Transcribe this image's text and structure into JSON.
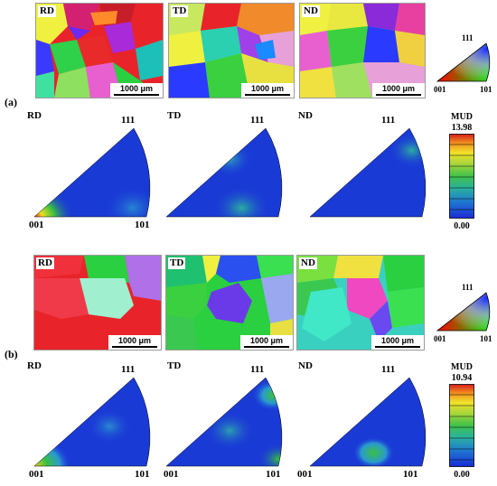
{
  "panels": [
    {
      "label": "(a)",
      "maps": [
        {
          "dir": "RD",
          "scale": "1000 μm"
        },
        {
          "dir": "TD",
          "scale": "1000 μm"
        },
        {
          "dir": "ND",
          "scale": "1000 μm"
        }
      ],
      "ipf_key": {
        "top": "111",
        "left": "001",
        "right": "101"
      },
      "pole_figures": [
        {
          "dir": "RD",
          "corner_top": "111",
          "corner_left": "001",
          "corner_right": "101"
        },
        {
          "dir": "TD",
          "corner_top": "111"
        },
        {
          "dir": "ND",
          "corner_top": "111"
        }
      ],
      "colorbar": {
        "title": "MUD",
        "max": "13.98",
        "min": "0.00"
      }
    },
    {
      "label": "(b)",
      "maps": [
        {
          "dir": "RD",
          "scale": "1000 μm"
        },
        {
          "dir": "TD",
          "scale": "1000 μm"
        },
        {
          "dir": "ND",
          "scale": "1000 μm"
        }
      ],
      "ipf_key": {
        "top": "111",
        "left": "001",
        "right": "101"
      },
      "pole_figures": [
        {
          "dir": "RD",
          "corner_top": "111",
          "corner_left": "001",
          "corner_right": "101"
        },
        {
          "dir": "TD",
          "corner_top": "111",
          "corner_left": "001",
          "corner_right": "101"
        },
        {
          "dir": "ND",
          "corner_top": "111",
          "corner_left": "001",
          "corner_right": "101"
        }
      ],
      "colorbar": {
        "title": "MUD",
        "max": "10.94",
        "min": "0.00"
      }
    }
  ]
}
